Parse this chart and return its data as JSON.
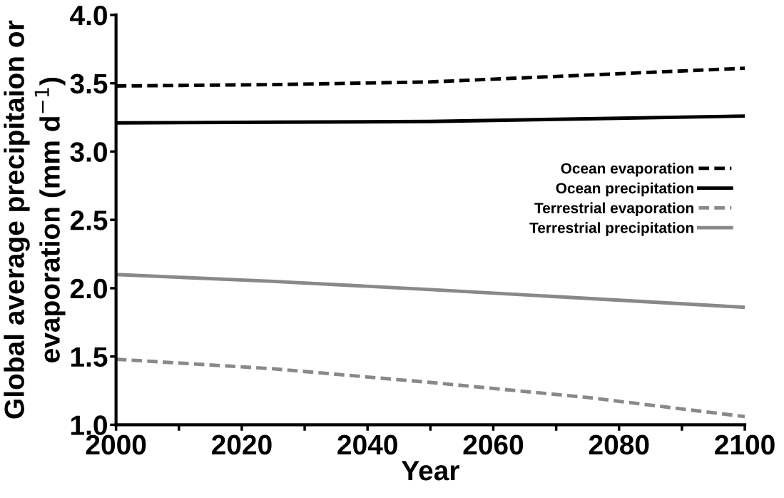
{
  "chart_data": {
    "type": "line",
    "xlabel": "Year",
    "ylabel": "Global average precipitaion or\nevaporation (mm d$^{−1}$)",
    "x": [
      2000,
      2025,
      2050,
      2075,
      2100
    ],
    "series": [
      {
        "name": "Ocean evaporation",
        "color": "#000000",
        "line_style": "dashed",
        "values": [
          3.48,
          3.49,
          3.51,
          3.56,
          3.61
        ]
      },
      {
        "name": "Ocean precipitation",
        "color": "#000000",
        "line_style": "solid",
        "values": [
          3.21,
          3.215,
          3.22,
          3.24,
          3.26
        ]
      },
      {
        "name": "Terrestrial evaporation",
        "color": "#898989",
        "line_style": "dashed",
        "values": [
          1.48,
          1.41,
          1.31,
          1.2,
          1.06
        ]
      },
      {
        "name": "Terrestrial precipitation",
        "color": "#898989",
        "line_style": "solid",
        "values": [
          2.1,
          2.05,
          1.99,
          1.925,
          1.86
        ]
      }
    ],
    "xlim": [
      2000,
      2100
    ],
    "xticks": [
      2000,
      {
        "value": 2010,
        "label": null
      },
      2020,
      {
        "value": 2030,
        "label": null
      },
      2040,
      {
        "value": 2050,
        "label": null
      },
      2060,
      {
        "value": 2070,
        "label": null
      },
      2080,
      {
        "value": 2090,
        "label": null
      },
      2100
    ],
    "ylim": [
      1.0,
      4.0
    ],
    "yticks": [
      {
        "value": 1.0,
        "label": "1.0"
      },
      1.5,
      {
        "value": 2.0,
        "label": "2.0"
      },
      2.5,
      {
        "value": 3.0,
        "label": "3.0"
      },
      3.5,
      {
        "value": 4.0,
        "label": "4.0"
      }
    ],
    "grid": false,
    "legend": "right",
    "marker": "none"
  }
}
